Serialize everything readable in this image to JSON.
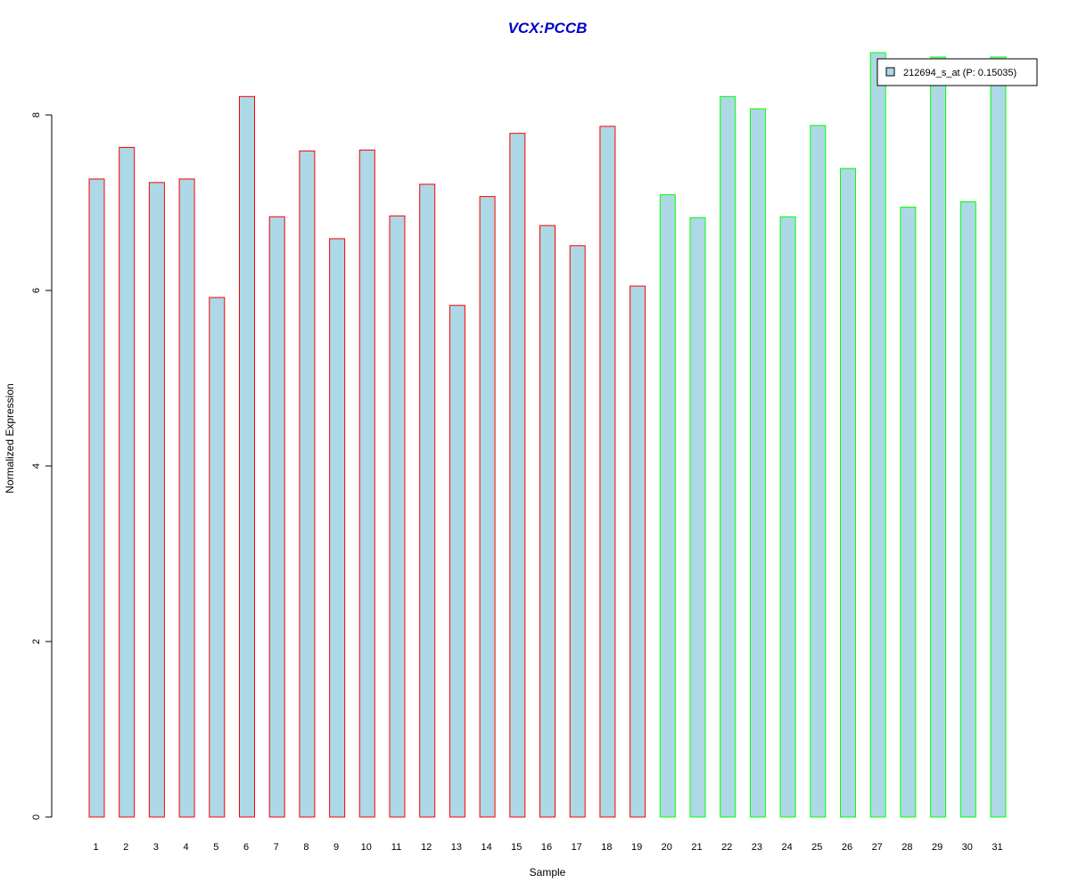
{
  "chart_data": {
    "type": "bar",
    "title": "VCX:PCCB",
    "xlabel": "Sample",
    "ylabel": "Normalized Expression",
    "ylim": [
      0,
      8.7
    ],
    "y_ticks": [
      "0",
      "2",
      "4",
      "6",
      "8"
    ],
    "y_tick_values": [
      0,
      2,
      4,
      6,
      8
    ],
    "grid": false,
    "legend": {
      "position": "top-right",
      "entries": [
        {
          "label": "212694_s_at (P: 0.15035)",
          "fill": "#add8e6"
        }
      ]
    },
    "categories": [
      "1",
      "2",
      "3",
      "4",
      "5",
      "6",
      "7",
      "8",
      "9",
      "10",
      "11",
      "12",
      "13",
      "14",
      "15",
      "16",
      "17",
      "18",
      "19",
      "20",
      "21",
      "22",
      "23",
      "24",
      "25",
      "26",
      "27",
      "28",
      "29",
      "30",
      "31"
    ],
    "series": [
      {
        "name": "212694_s_at (P: 0.15035)",
        "values": [
          7.27,
          7.63,
          7.23,
          7.27,
          5.92,
          8.21,
          6.84,
          7.59,
          6.59,
          7.6,
          6.85,
          7.21,
          5.83,
          7.07,
          7.79,
          6.74,
          6.51,
          7.87,
          6.05,
          7.09,
          6.83,
          8.21,
          8.07,
          6.84,
          7.88,
          7.39,
          8.71,
          6.95,
          8.66,
          7.01,
          8.66
        ]
      }
    ],
    "groups": [
      {
        "color": "#ff0000",
        "samples": 19
      },
      {
        "color": "#00ff00",
        "samples": 12
      }
    ],
    "colors": {
      "bar_fill": "#add8e6",
      "title": "#0000cd"
    }
  }
}
